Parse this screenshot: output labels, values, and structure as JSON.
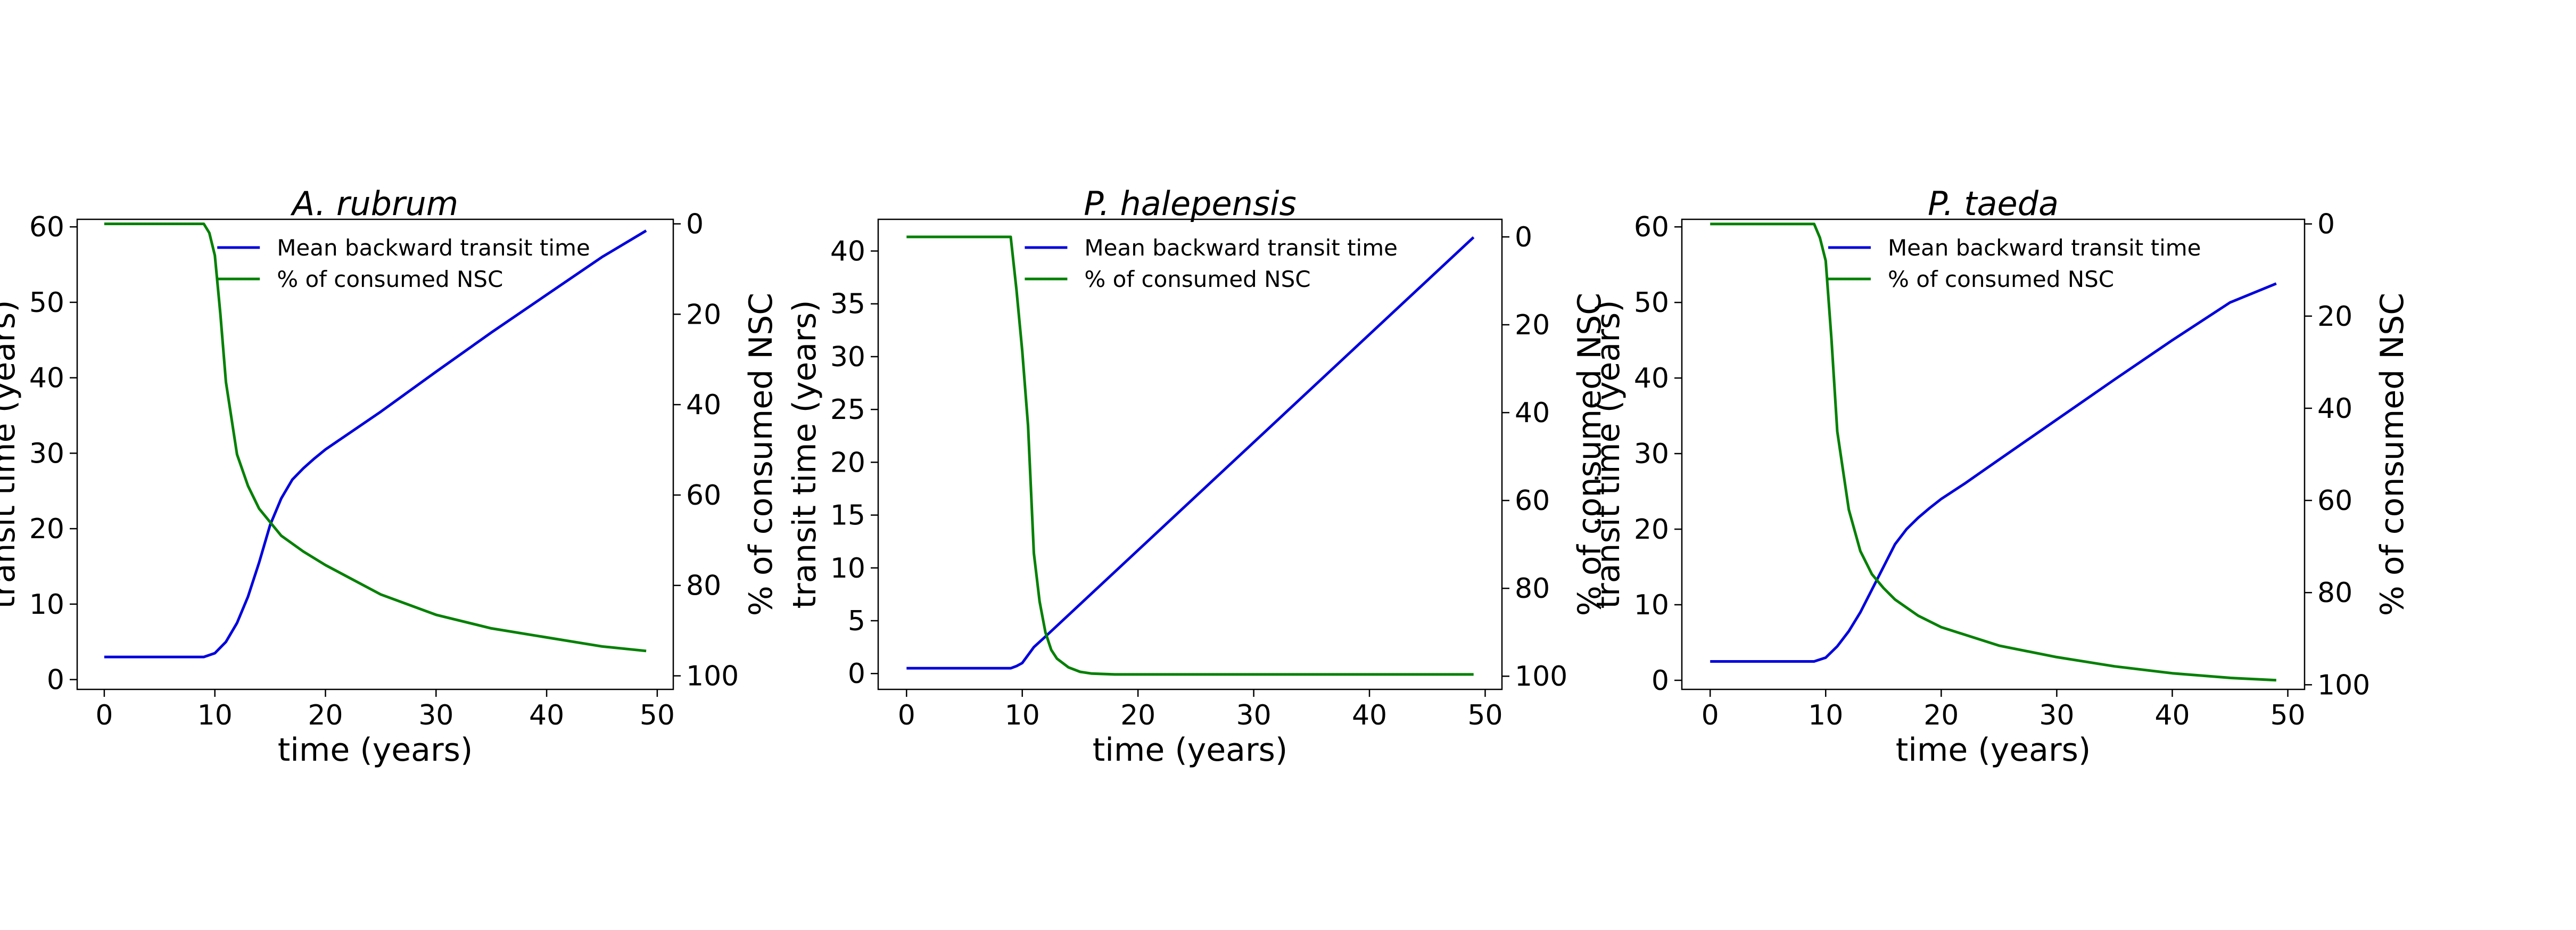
{
  "colors": {
    "transit_line": "#0000dd",
    "nsc_line": "#008000",
    "axes": "#000000",
    "background": "#ffffff"
  },
  "chart_data": [
    {
      "type": "line",
      "title": "A. rubrum",
      "xlabel": "time (years)",
      "ylabel": "transit time (years)",
      "y2label": "% of consumed NSC",
      "xlim": [
        -2.45,
        51.45
      ],
      "ylim": [
        -1.3,
        61.0
      ],
      "y2lim": [
        103,
        -1
      ],
      "y2_inverted": true,
      "xticks": [
        0,
        10,
        20,
        30,
        40,
        50
      ],
      "yticks": [
        0,
        10,
        20,
        30,
        40,
        50,
        60
      ],
      "y2ticks": [
        0,
        20,
        40,
        60,
        80,
        100
      ],
      "legend_position": "upper-center",
      "legend": [
        "Mean backward transit time",
        "% of consumed NSC"
      ],
      "series": [
        {
          "name": "Mean backward transit time",
          "axis": "left",
          "x": [
            0,
            9,
            10,
            11,
            12,
            13,
            14,
            15,
            16,
            17,
            18,
            19,
            20,
            22,
            25,
            30,
            35,
            40,
            45,
            49
          ],
          "y": [
            3.0,
            3.0,
            3.5,
            5.0,
            7.5,
            11.0,
            15.5,
            20.5,
            24.0,
            26.5,
            28.0,
            29.3,
            30.5,
            32.5,
            35.5,
            40.8,
            46.0,
            51.0,
            56.0,
            59.5
          ]
        },
        {
          "name": "% of consumed NSC",
          "axis": "right",
          "x": [
            0,
            9,
            9.5,
            10,
            10.5,
            11,
            12,
            13,
            14,
            15,
            16,
            18,
            20,
            25,
            30,
            35,
            40,
            45,
            49
          ],
          "y": [
            0,
            0,
            2,
            7,
            20,
            35,
            51,
            58,
            63,
            66,
            69,
            72.5,
            75.5,
            82,
            86.5,
            89.5,
            91.5,
            93.5,
            94.5
          ]
        }
      ]
    },
    {
      "type": "line",
      "title": "P. halepensis",
      "xlabel": "time (years)",
      "ylabel": "transit time (years)",
      "y2label": "% of consumed NSC",
      "xlim": [
        -2.45,
        51.45
      ],
      "ylim": [
        -1.5,
        43.0
      ],
      "y2lim": [
        103,
        -4
      ],
      "y2_inverted": true,
      "xticks": [
        0,
        10,
        20,
        30,
        40,
        50
      ],
      "yticks": [
        0,
        5,
        10,
        15,
        20,
        25,
        30,
        35,
        40
      ],
      "y2ticks": [
        0,
        20,
        40,
        60,
        80,
        100
      ],
      "legend_position": "upper-center",
      "legend": [
        "Mean backward transit time",
        "% of consumed NSC"
      ],
      "series": [
        {
          "name": "Mean backward transit time",
          "axis": "left",
          "x": [
            0,
            9,
            9.5,
            10,
            11,
            12,
            49
          ],
          "y": [
            0.5,
            0.5,
            0.7,
            1.0,
            2.5,
            3.5,
            41.3
          ]
        },
        {
          "name": "% of consumed NSC",
          "axis": "right",
          "x": [
            0,
            9,
            9.5,
            10,
            10.5,
            11,
            11.5,
            12,
            12.5,
            13,
            14,
            15,
            16,
            18,
            20,
            49
          ],
          "y": [
            0,
            0,
            12,
            26,
            43,
            72,
            83,
            90,
            94,
            96,
            98,
            99,
            99.4,
            99.6,
            99.6,
            99.6
          ]
        }
      ]
    },
    {
      "type": "line",
      "title": "P. taeda",
      "xlabel": "time (years)",
      "ylabel": "transit time (years)",
      "y2label": "% of consumed NSC",
      "xlim": [
        -2.45,
        51.45
      ],
      "ylim": [
        -1.2,
        61.0
      ],
      "y2lim": [
        101,
        -1
      ],
      "y2_inverted": true,
      "xticks": [
        0,
        10,
        20,
        30,
        40,
        50
      ],
      "yticks": [
        0,
        10,
        20,
        30,
        40,
        50,
        60
      ],
      "y2ticks": [
        0,
        20,
        40,
        60,
        80,
        100
      ],
      "legend_position": "upper-center",
      "legend": [
        "Mean backward transit time",
        "% of consumed NSC"
      ],
      "series": [
        {
          "name": "Mean backward transit time",
          "axis": "left",
          "x": [
            0,
            9,
            10,
            11,
            12,
            13,
            14,
            15,
            16,
            17,
            18,
            19,
            20,
            22,
            25,
            30,
            35,
            40,
            45,
            49
          ],
          "y": [
            2.5,
            2.5,
            3.0,
            4.5,
            6.5,
            9.0,
            12.0,
            15.0,
            18.0,
            20.0,
            21.5,
            22.8,
            24.0,
            26.0,
            29.2,
            34.5,
            39.8,
            45.0,
            50.0,
            52.5
          ]
        },
        {
          "name": "% of consumed NSC",
          "axis": "right",
          "x": [
            0,
            9,
            9.5,
            10,
            10.5,
            11,
            12,
            13,
            14,
            15,
            16,
            18,
            20,
            25,
            30,
            35,
            40,
            45,
            49
          ],
          "y": [
            0,
            0,
            3,
            8,
            25,
            45,
            62,
            71,
            76,
            79,
            81.5,
            85,
            87.5,
            91.5,
            94,
            96,
            97.5,
            98.5,
            99
          ]
        }
      ]
    }
  ]
}
